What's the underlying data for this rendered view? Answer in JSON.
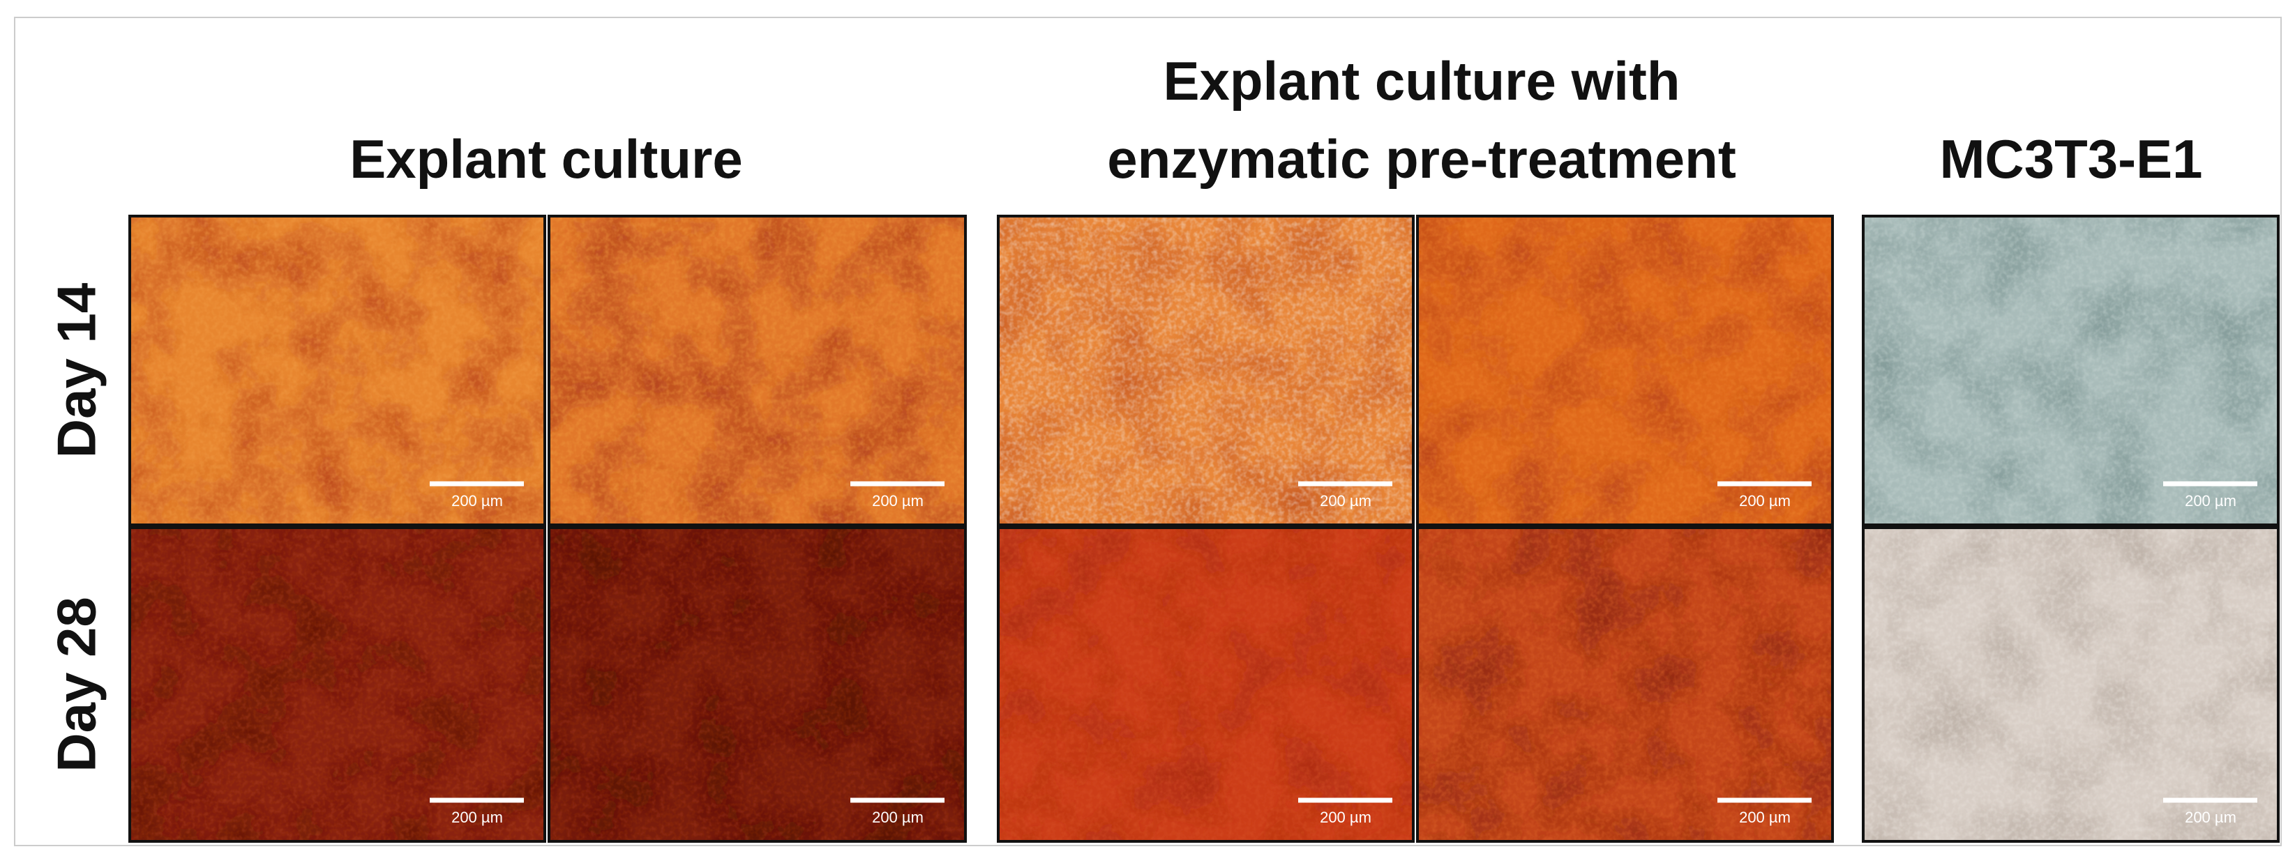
{
  "columns": [
    {
      "title": [
        "Explant culture"
      ]
    },
    {
      "title": [
        "Explant culture with",
        "enzymatic pre-treatment"
      ]
    },
    {
      "title": [
        "MC3T3-E1"
      ]
    }
  ],
  "rows": [
    {
      "label": "Day 14",
      "scale_bars": [
        "200 µm",
        "200 µm",
        "200 µm",
        "200 µm",
        "200 µm"
      ]
    },
    {
      "label": "Day 28",
      "scale_bars": [
        "200 µm",
        "200 µm",
        "200 µm",
        "200 µm",
        "200 µm"
      ]
    }
  ]
}
